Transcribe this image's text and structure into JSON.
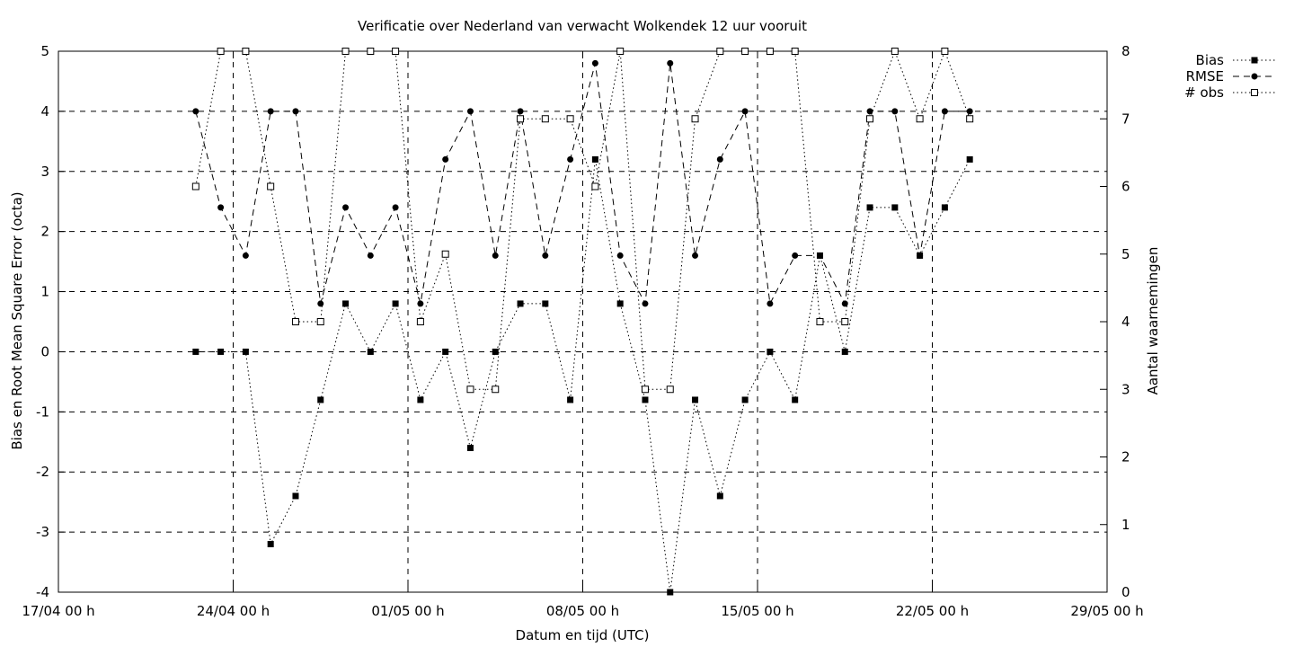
{
  "chart_data": {
    "type": "line",
    "title": "Verificatie over Nederland van verwacht Wolkendek 12 uur vooruit",
    "xlabel": "Datum en tijd (UTC)",
    "ylabel": "Bias en Root Mean Square Error (octa)",
    "y2label": "Aantal waarnemingen",
    "x_range_days": [
      0,
      42
    ],
    "ylim": [
      -4,
      5
    ],
    "y2lim": [
      0,
      8
    ],
    "x_ticks": [
      {
        "day": 0,
        "label": "17/04 00 h"
      },
      {
        "day": 7,
        "label": "24/04 00 h"
      },
      {
        "day": 14,
        "label": "01/05 00 h"
      },
      {
        "day": 21,
        "label": "08/05 00 h"
      },
      {
        "day": 28,
        "label": "15/05 00 h"
      },
      {
        "day": 35,
        "label": "22/05 00 h"
      },
      {
        "day": 42,
        "label": "29/05 00 h"
      }
    ],
    "y_ticks": [
      5,
      4,
      3,
      2,
      1,
      0,
      -1,
      -2,
      -3,
      -4
    ],
    "y2_ticks": [
      8,
      7,
      6,
      5,
      4,
      3,
      2,
      1,
      0
    ],
    "grid": true,
    "legend_position": "top-right, outside plot",
    "x": [
      5.5,
      6.5,
      7.5,
      8.5,
      9.5,
      10.5,
      11.5,
      12.5,
      13.5,
      14.5,
      15.5,
      16.5,
      17.5,
      18.5,
      19.5,
      20.5,
      21.5,
      22.5,
      23.5,
      24.5,
      25.5,
      26.5,
      27.5,
      28.5,
      29.5,
      30.5,
      31.5,
      32.5,
      33.5,
      34.5,
      35.5,
      36.5
    ],
    "series": [
      {
        "name": "Bias",
        "axis": "left",
        "values": [
          0,
          0,
          0,
          -3.2,
          -2.4,
          -0.8,
          0.8,
          0,
          0.8,
          -0.8,
          0,
          -1.6,
          0,
          0.8,
          0.8,
          -0.8,
          3.2,
          0.8,
          -0.8,
          -4,
          -0.8,
          -2.4,
          -0.8,
          0,
          -0.8,
          1.6,
          0,
          2.4,
          2.4,
          1.6,
          2.4,
          3.2
        ]
      },
      {
        "name": "RMSE",
        "axis": "left",
        "values": [
          4,
          2.4,
          1.6,
          4,
          4,
          0.8,
          2.4,
          1.6,
          2.4,
          0.8,
          3.2,
          4,
          1.6,
          4,
          1.6,
          3.2,
          4.8,
          1.6,
          0.8,
          4.8,
          1.6,
          3.2,
          4,
          0.8,
          1.6,
          1.6,
          0.8,
          4,
          4,
          1.6,
          4,
          4
        ]
      },
      {
        "name": "# obs",
        "axis": "right",
        "values": [
          6,
          8,
          8,
          6,
          4,
          4,
          8,
          8,
          8,
          4,
          5,
          3,
          3,
          7,
          7,
          7,
          6,
          8,
          3,
          3,
          7,
          8,
          8,
          8,
          8,
          4,
          4,
          7,
          8,
          7,
          8,
          7
        ]
      }
    ]
  }
}
